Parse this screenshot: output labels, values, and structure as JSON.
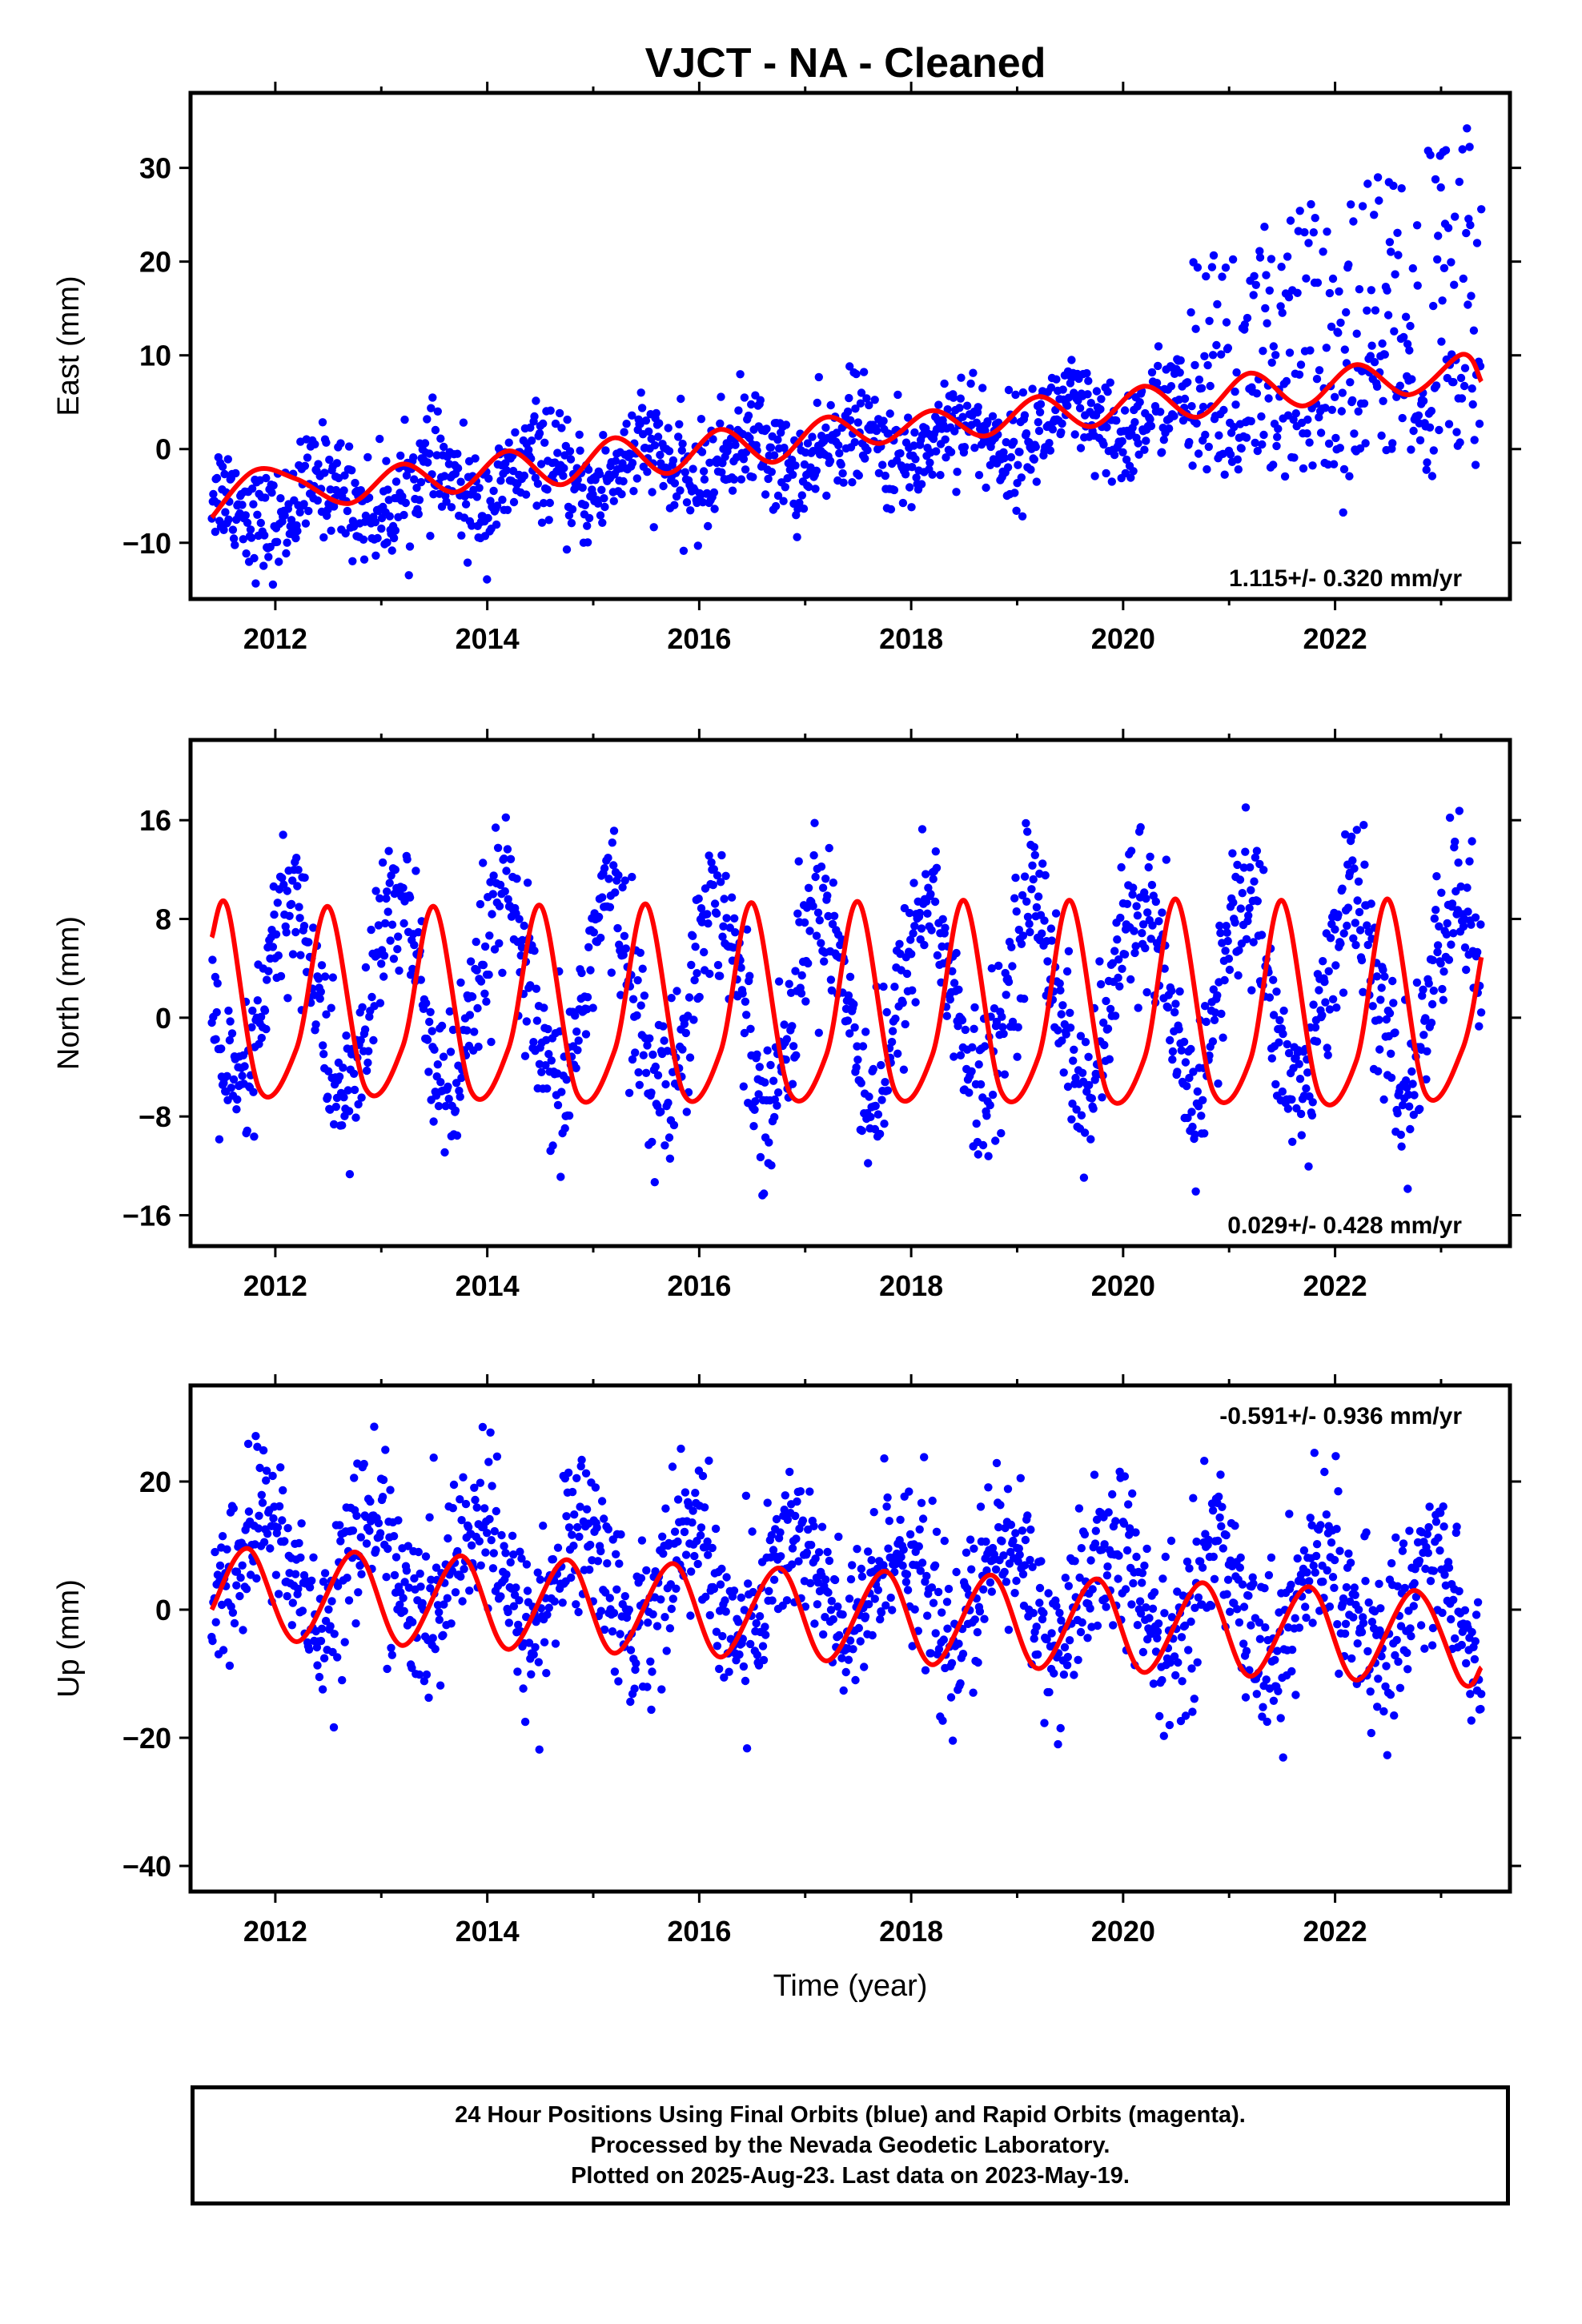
{
  "title": "VJCT  - NA - Cleaned",
  "footer": {
    "line1": "24 Hour Positions Using Final Orbits (blue) and Rapid Orbits (magenta).",
    "line2": "Processed by the Nevada Geodetic Laboratory.",
    "line3": "Plotted on 2025-Aug-23. Last data on 2023-May-19."
  },
  "colors": {
    "points": "#0000ff",
    "model": "#ff0000",
    "frame": "#000000"
  },
  "chart_data": [
    {
      "type": "scatter",
      "ylabel": "East (mm)",
      "xlabel": "",
      "xlim": [
        2011.2,
        2023.65
      ],
      "ylim": [
        -16,
        38
      ],
      "xticks": [
        2012,
        2014,
        2016,
        2018,
        2020,
        2022
      ],
      "yticks": [
        -10,
        0,
        10,
        20,
        30
      ],
      "rate_text": "1.115+/- 0.320 mm/yr",
      "rate_position": "bottom-right",
      "series": [
        {
          "role": "daily positions (final orbits)",
          "x_range": [
            2011.4,
            2023.38
          ],
          "trend": {
            "start": -6.6,
            "slope": 1.115,
            "amp": 2.2,
            "phase_year": 0.2
          },
          "step_after": 2020.6,
          "step_scatter": [
            -3,
            35
          ],
          "scatter": 2.8
        },
        {
          "role": "model fit",
          "x": [
            2011.4,
            2011.8,
            2012.2,
            2012.7,
            2013.2,
            2013.7,
            2014.2,
            2014.7,
            2015.2,
            2015.7,
            2016.2,
            2016.7,
            2017.2,
            2017.7,
            2018.2,
            2018.7,
            2019.2,
            2019.7,
            2020.2,
            2020.7,
            2021.2,
            2021.7,
            2022.2,
            2022.7,
            2023.2,
            2023.38
          ],
          "y": [
            -7.3,
            -2.3,
            -3.2,
            -5.8,
            -1.6,
            -4.6,
            -0.2,
            -3.8,
            1.2,
            -2.6,
            2.1,
            -1.4,
            3.4,
            0.6,
            4.1,
            1.4,
            5.6,
            2.4,
            6.7,
            3.4,
            8.1,
            4.6,
            9.0,
            5.8,
            10.1,
            7.2
          ]
        }
      ]
    },
    {
      "type": "scatter",
      "ylabel": "North (mm)",
      "xlabel": "",
      "xlim": [
        2011.2,
        2023.65
      ],
      "ylim": [
        -18.5,
        22.5
      ],
      "xticks": [
        2012,
        2014,
        2016,
        2018,
        2020,
        2022
      ],
      "yticks": [
        -16,
        -8,
        0,
        8,
        16
      ],
      "rate_text": "0.029+/- 0.428 mm/yr",
      "rate_position": "bottom-right",
      "series": [
        {
          "role": "daily positions (final orbits)",
          "x_range": [
            2011.4,
            2023.38
          ],
          "trend": {
            "start": 1.5,
            "slope": 0.029,
            "amp": 8.0,
            "phase_year": 0.5
          },
          "scatter": 3.2
        },
        {
          "role": "model fit",
          "x": [
            2011.4,
            2011.55,
            2011.85,
            2012.2,
            2012.5,
            2012.85,
            2013.2,
            2013.5,
            2013.85,
            2014.2,
            2014.5,
            2014.85,
            2015.2,
            2015.5,
            2015.85,
            2016.2,
            2016.5,
            2016.85,
            2017.2,
            2017.5,
            2017.85,
            2018.2,
            2018.5,
            2018.85,
            2019.2,
            2019.5,
            2019.85,
            2020.2,
            2020.5,
            2020.85,
            2021.2,
            2021.5,
            2021.85,
            2022.2,
            2022.5,
            2022.85,
            2023.2,
            2023.38
          ],
          "y": [
            6.5,
            8.9,
            -5.8,
            -2.5,
            9.0,
            -5.7,
            -2.4,
            9.0,
            -6.0,
            -2.5,
            9.1,
            -6.2,
            -2.7,
            9.2,
            -6.1,
            -2.8,
            9.3,
            -6.0,
            -3.0,
            9.4,
            -6.0,
            -3.0,
            9.5,
            -6.0,
            -3.2,
            9.5,
            -6.1,
            -3.3,
            9.6,
            -6.0,
            -3.4,
            9.5,
            -6.2,
            -3.5,
            9.6,
            -6.1,
            -2.6,
            4.9
          ]
        }
      ]
    },
    {
      "type": "scatter",
      "ylabel": "Up (mm)",
      "xlabel": "Time (year)",
      "xlim": [
        2011.2,
        2023.65
      ],
      "ylim": [
        -44,
        35
      ],
      "xticks": [
        2012,
        2014,
        2016,
        2018,
        2020,
        2022
      ],
      "yticks": [
        -40,
        -20,
        0,
        20
      ],
      "rate_text": "-0.591+/- 0.936 mm/yr",
      "rate_position": "top-right",
      "series": [
        {
          "role": "daily positions (final orbits)",
          "x_range": [
            2011.4,
            2023.38
          ],
          "trend": {
            "start": 7.0,
            "slope": -0.591,
            "amp": 8.0,
            "phase_year": 0.75
          },
          "scatter": 6.5
        },
        {
          "role": "model fit",
          "x": [
            2011.4,
            2011.75,
            2012.2,
            2012.75,
            2013.2,
            2013.75,
            2014.2,
            2014.75,
            2015.2,
            2015.75,
            2016.2,
            2016.75,
            2017.2,
            2017.75,
            2018.2,
            2018.75,
            2019.2,
            2019.75,
            2020.2,
            2020.75,
            2021.2,
            2021.75,
            2022.2,
            2022.75,
            2023.2,
            2023.38
          ],
          "y": [
            0.0,
            9.5,
            -5.0,
            9.0,
            -5.6,
            8.4,
            -6.2,
            7.8,
            -6.8,
            7.2,
            -7.4,
            6.5,
            -8.0,
            6.0,
            -8.6,
            5.4,
            -9.2,
            4.8,
            -9.8,
            4.2,
            -10.4,
            3.6,
            -11.0,
            3.0,
            -11.4,
            -9.0
          ]
        }
      ]
    }
  ]
}
